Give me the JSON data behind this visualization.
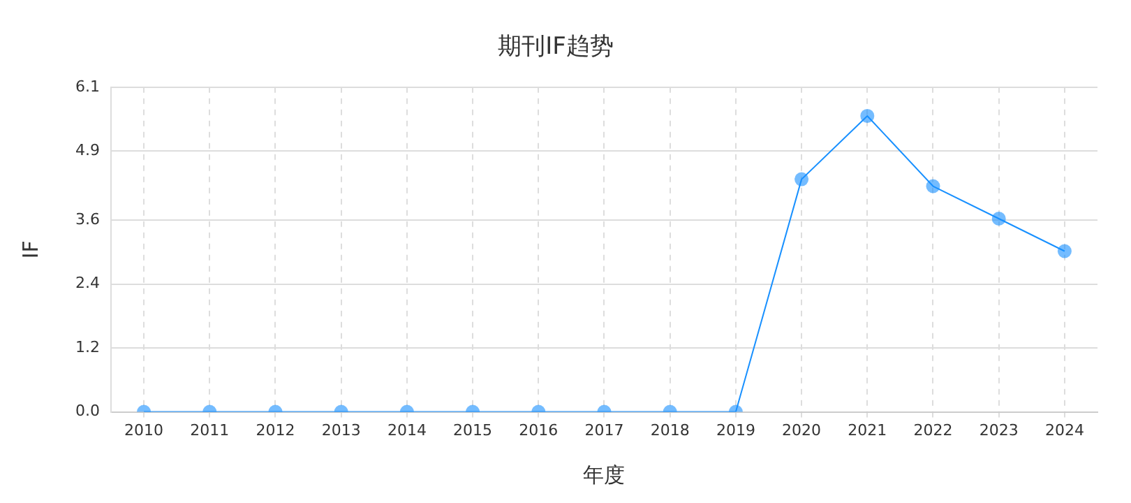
{
  "chart_data": {
    "type": "line",
    "title": "期刊IF趋势",
    "xlabel": "年度",
    "ylabel": "IF",
    "categories": [
      "2010",
      "2011",
      "2012",
      "2013",
      "2014",
      "2015",
      "2016",
      "2017",
      "2018",
      "2019",
      "2020",
      "2021",
      "2022",
      "2023",
      "2024"
    ],
    "series": [
      {
        "color": "#1890ff",
        "values": [
          0,
          0,
          0,
          0,
          0,
          0,
          0,
          0,
          0,
          0,
          4.37,
          5.56,
          4.24,
          3.63,
          3.02
        ]
      }
    ],
    "ylim": [
      0,
      6.1
    ],
    "yticks": [
      {
        "value": 0,
        "label": "0.0"
      },
      1.2,
      2.4,
      3.6,
      4.9,
      6.1
    ],
    "grid": true,
    "legend": false,
    "marker": "circle",
    "line_style": "solid"
  }
}
